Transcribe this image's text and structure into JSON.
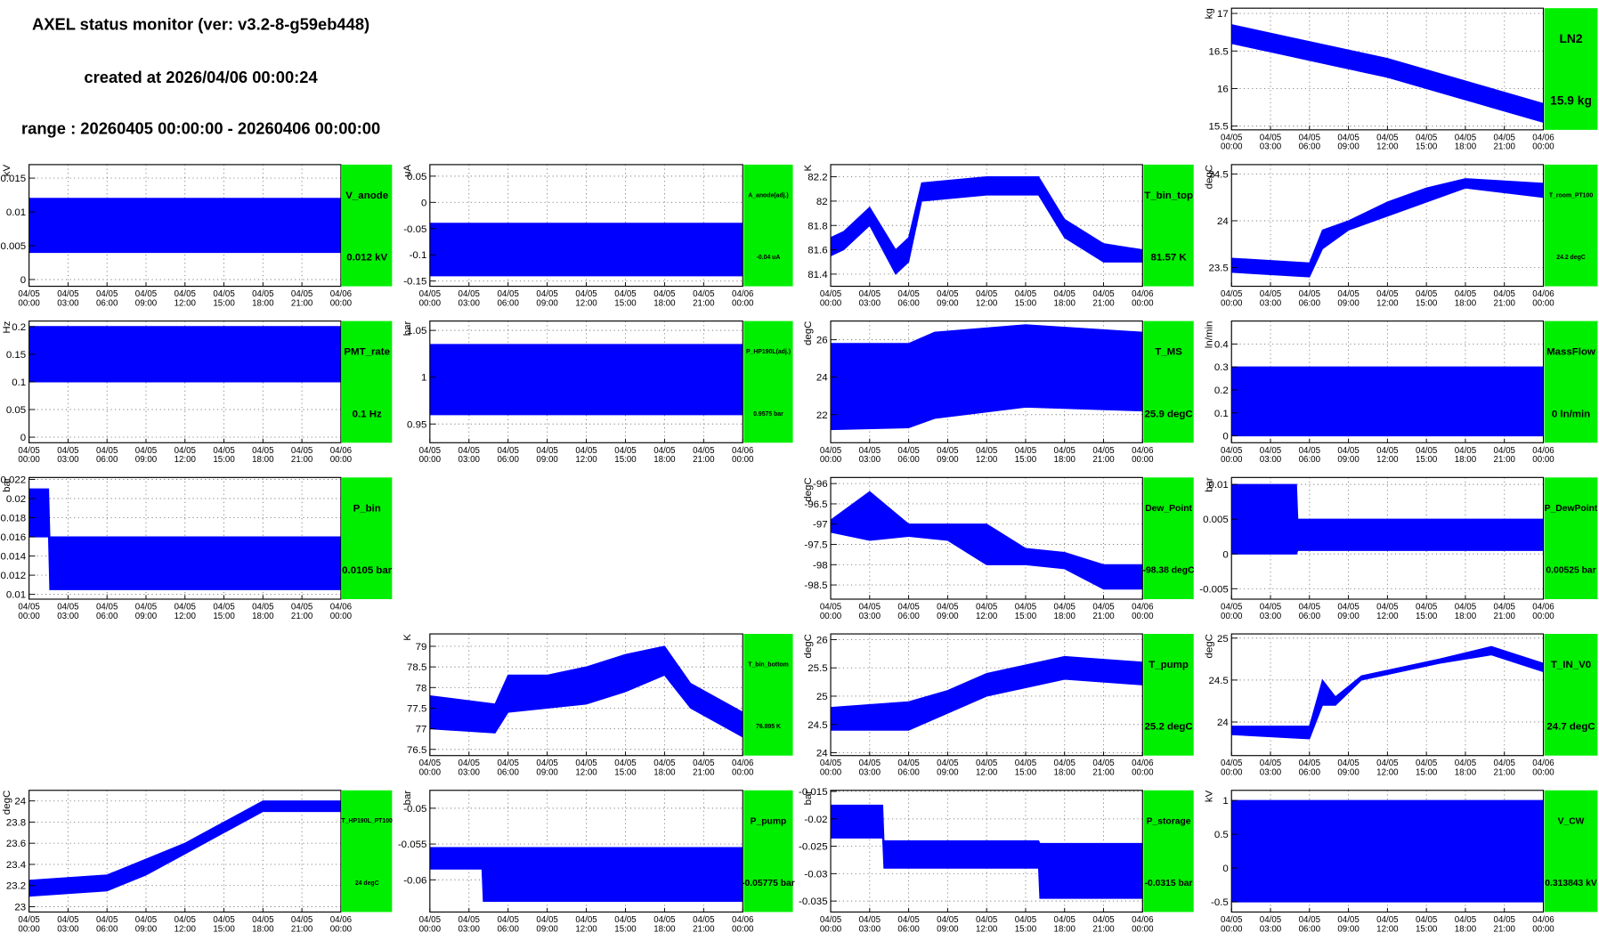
{
  "header": {
    "title": "AXEL status monitor (ver: v3.2-8-g59eb448)",
    "created": "created at 2026/04/06 00:00:24",
    "range": "range : 20260405 00:00:00 - 20260406 00:00:00"
  },
  "time_axis": {
    "xlim": [
      0,
      24
    ],
    "xticks": [
      0,
      3,
      6,
      9,
      12,
      15,
      18,
      21,
      24
    ],
    "dates": [
      "04/05",
      "04/05",
      "04/05",
      "04/05",
      "04/05",
      "04/05",
      "04/05",
      "04/05",
      "04/06"
    ],
    "times": [
      "00:00",
      "03:00",
      "06:00",
      "09:00",
      "12:00",
      "15:00",
      "18:00",
      "21:00",
      "00:00"
    ]
  },
  "chart_data": [
    {
      "type": "band",
      "name": "LN2",
      "reading": "15.9 kg",
      "ylabel": "kg",
      "ylim": [
        15.45,
        17.07
      ],
      "yticks": [
        15.5,
        16,
        16.5,
        17
      ],
      "color": "#0000ff",
      "grid": true,
      "x": [
        0,
        4,
        8,
        12,
        16,
        20,
        24
      ],
      "low": [
        16.6,
        16.45,
        16.3,
        16.15,
        15.95,
        15.75,
        15.55
      ],
      "high": [
        16.85,
        16.7,
        16.55,
        16.4,
        16.2,
        16.0,
        15.8
      ]
    },
    {
      "type": "band",
      "name": "V_anode",
      "reading": "0.012 kV",
      "ylabel": "kV",
      "ylim": [
        -0.001,
        0.017
      ],
      "yticks": [
        0,
        0.005,
        0.01,
        0.015
      ],
      "color": "#0000ff",
      "grid": true,
      "x": [
        0,
        24
      ],
      "low": [
        0.004,
        0.004
      ],
      "high": [
        0.012,
        0.012
      ]
    },
    {
      "type": "band",
      "name": "A_anode(adj.)",
      "reading": "-0.04 uA",
      "ylabel": "uA",
      "ylim": [
        -0.16,
        0.072
      ],
      "yticks": [
        -0.15,
        -0.1,
        -0.05,
        0,
        0.05
      ],
      "color": "#0000ff",
      "grid": true,
      "x": [
        0,
        24
      ],
      "low": [
        -0.14,
        -0.14
      ],
      "high": [
        -0.04,
        -0.04
      ]
    },
    {
      "type": "band",
      "name": "T_bin_top",
      "reading": "81.57 K",
      "ylabel": "K",
      "ylim": [
        81.3,
        82.3
      ],
      "yticks": [
        81.4,
        81.6,
        81.8,
        82,
        82.2
      ],
      "color": "#0000ff",
      "grid": true,
      "x": [
        0,
        1,
        3,
        5,
        6,
        7,
        12,
        16,
        18,
        21,
        24
      ],
      "low": [
        81.55,
        81.6,
        81.8,
        81.4,
        81.5,
        82.0,
        82.05,
        82.05,
        81.7,
        81.5,
        81.5
      ],
      "high": [
        81.7,
        81.75,
        81.95,
        81.6,
        81.7,
        82.15,
        82.2,
        82.2,
        81.85,
        81.65,
        81.6
      ]
    },
    {
      "type": "band",
      "name": "T_room_PT100",
      "reading": "24.2 degC",
      "ylabel": "degC",
      "ylim": [
        23.3,
        24.6
      ],
      "yticks": [
        23.5,
        24,
        24.5
      ],
      "color": "#0000ff",
      "grid": true,
      "x": [
        0,
        6,
        7,
        9,
        12,
        15,
        18,
        24
      ],
      "low": [
        23.45,
        23.4,
        23.7,
        23.9,
        24.05,
        24.2,
        24.35,
        24.25
      ],
      "high": [
        23.6,
        23.55,
        23.9,
        24.0,
        24.2,
        24.35,
        24.45,
        24.4
      ]
    },
    {
      "type": "band",
      "name": "PMT_rate",
      "reading": "0.1 Hz",
      "ylabel": "Hz",
      "ylim": [
        -0.01,
        0.21
      ],
      "yticks": [
        0,
        0.05,
        0.1,
        0.15,
        0.2
      ],
      "color": "#0000ff",
      "grid": true,
      "x": [
        0,
        24
      ],
      "low": [
        0.1,
        0.1
      ],
      "high": [
        0.2,
        0.2
      ]
    },
    {
      "type": "band",
      "name": "P_HP190L(adj.)",
      "reading": "0.9575 bar",
      "ylabel": "bar",
      "ylim": [
        0.93,
        1.06
      ],
      "yticks": [
        0.95,
        1,
        1.05
      ],
      "color": "#0000ff",
      "grid": true,
      "x": [
        0,
        24
      ],
      "low": [
        0.96,
        0.96
      ],
      "high": [
        1.035,
        1.035
      ]
    },
    {
      "type": "band",
      "name": "T_MS",
      "reading": "25.9 degC",
      "ylabel": "degC",
      "ylim": [
        20.5,
        27
      ],
      "yticks": [
        22,
        24,
        26
      ],
      "color": "#0000ff",
      "grid": true,
      "x": [
        0,
        6,
        8,
        15,
        24
      ],
      "low": [
        21.2,
        21.3,
        21.8,
        22.4,
        22.2
      ],
      "high": [
        25.8,
        25.8,
        26.4,
        26.8,
        26.4
      ]
    },
    {
      "type": "band",
      "name": "MassFlow",
      "reading": "0 ln/min",
      "ylabel": "ln/min",
      "ylim": [
        -0.03,
        0.5
      ],
      "yticks": [
        0,
        0.1,
        0.2,
        0.3,
        0.4
      ],
      "color": "#0000ff",
      "grid": true,
      "x": [
        0,
        24
      ],
      "low": [
        0,
        0
      ],
      "high": [
        0.3,
        0.3
      ]
    },
    {
      "type": "band",
      "name": "P_bin",
      "reading": "0.0105 bar",
      "ylabel": "bar",
      "ylim": [
        0.0095,
        0.0222
      ],
      "yticks": [
        0.01,
        0.012,
        0.014,
        0.016,
        0.018,
        0.02,
        0.022
      ],
      "color": "#0000ff",
      "grid": true,
      "x": [
        0,
        1.5,
        1.6,
        24
      ],
      "low": [
        0.016,
        0.016,
        0.0105,
        0.0105
      ],
      "high": [
        0.021,
        0.021,
        0.016,
        0.016
      ]
    },
    {
      "type": "band",
      "name": "Dew_Point",
      "reading": "-98.38 degC",
      "ylabel": "degC",
      "ylim": [
        -98.85,
        -95.85
      ],
      "yticks": [
        -98.5,
        -98,
        -97.5,
        -97,
        -96.5,
        -96
      ],
      "color": "#0000ff",
      "grid": true,
      "x": [
        0,
        3,
        6,
        9,
        12,
        15,
        18,
        21,
        24
      ],
      "low": [
        -97.2,
        -97.4,
        -97.3,
        -97.4,
        -98.0,
        -98.0,
        -98.1,
        -98.6,
        -98.6
      ],
      "high": [
        -96.9,
        -96.2,
        -97.0,
        -97.0,
        -97.0,
        -97.6,
        -97.7,
        -98.0,
        -98.0
      ]
    },
    {
      "type": "band",
      "name": "P_DewPoint",
      "reading": "0.00525 bar",
      "ylabel": "bar",
      "ylim": [
        -0.0065,
        0.011
      ],
      "yticks": [
        -0.005,
        0,
        0.005,
        0.01
      ],
      "color": "#0000ff",
      "grid": true,
      "x": [
        0,
        5,
        5.1,
        24
      ],
      "low": [
        0,
        0,
        0.0005,
        0.0005
      ],
      "high": [
        0.01,
        0.01,
        0.005,
        0.005
      ]
    },
    {
      "type": "band",
      "name": "T_bin_bottom",
      "reading": "76.895 K",
      "ylabel": "K",
      "ylim": [
        76.35,
        79.3
      ],
      "yticks": [
        76.5,
        77,
        77.5,
        78,
        78.5,
        79
      ],
      "color": "#0000ff",
      "grid": true,
      "x": [
        0,
        5,
        6,
        9,
        12,
        15,
        18,
        20,
        24
      ],
      "low": [
        77.0,
        76.9,
        77.4,
        77.5,
        77.6,
        77.9,
        78.3,
        77.5,
        76.8
      ],
      "high": [
        77.8,
        77.6,
        78.3,
        78.3,
        78.5,
        78.8,
        79.0,
        78.1,
        77.4
      ]
    },
    {
      "type": "band",
      "name": "T_pump",
      "reading": "25.2 degC",
      "ylabel": "degC",
      "ylim": [
        23.95,
        26.1
      ],
      "yticks": [
        24,
        24.5,
        25,
        25.5,
        26
      ],
      "color": "#0000ff",
      "grid": true,
      "x": [
        0,
        6,
        9,
        12,
        18,
        24
      ],
      "low": [
        24.4,
        24.4,
        24.7,
        25.0,
        25.3,
        25.2
      ],
      "high": [
        24.8,
        24.9,
        25.1,
        25.4,
        25.7,
        25.6
      ]
    },
    {
      "type": "band",
      "name": "T_IN_V0",
      "reading": "24.7 degC",
      "ylabel": "degC",
      "ylim": [
        23.6,
        25.05
      ],
      "yticks": [
        24,
        24.5,
        25
      ],
      "color": "#0000ff",
      "grid": true,
      "x": [
        0,
        6,
        7,
        8,
        10,
        16,
        20,
        24
      ],
      "low": [
        23.85,
        23.8,
        24.2,
        24.2,
        24.5,
        24.7,
        24.8,
        24.6
      ],
      "high": [
        23.95,
        23.95,
        24.5,
        24.3,
        24.55,
        24.75,
        24.9,
        24.7
      ]
    },
    {
      "type": "band",
      "name": "T_HP190L_PT100",
      "reading": "24 degC",
      "ylabel": "degC",
      "ylim": [
        22.95,
        24.1
      ],
      "yticks": [
        23,
        23.2,
        23.4,
        23.6,
        23.8,
        24
      ],
      "color": "#0000ff",
      "grid": true,
      "x": [
        0,
        6,
        9,
        12,
        15,
        18,
        24
      ],
      "low": [
        23.1,
        23.15,
        23.3,
        23.5,
        23.7,
        23.9,
        23.9
      ],
      "high": [
        23.25,
        23.3,
        23.45,
        23.6,
        23.8,
        24.0,
        24.0
      ]
    },
    {
      "type": "band",
      "name": "P_pump",
      "reading": "-0.05775 bar",
      "ylabel": "bar",
      "ylim": [
        -0.0645,
        -0.0475
      ],
      "yticks": [
        -0.06,
        -0.055,
        -0.05
      ],
      "color": "#0000ff",
      "grid": true,
      "x": [
        0,
        4,
        4.1,
        24
      ],
      "low": [
        -0.0585,
        -0.0585,
        -0.063,
        -0.063
      ],
      "high": [
        -0.0555,
        -0.0555,
        -0.0555,
        -0.0555
      ]
    },
    {
      "type": "band",
      "name": "P_storage",
      "reading": "-0.0315 bar",
      "ylabel": "bar",
      "ylim": [
        -0.037,
        -0.0148
      ],
      "yticks": [
        -0.035,
        -0.03,
        -0.025,
        -0.02,
        -0.015
      ],
      "color": "#0000ff",
      "grid": true,
      "x": [
        0,
        4,
        4.1,
        16,
        16.1,
        24
      ],
      "low": [
        -0.0235,
        -0.0235,
        -0.029,
        -0.029,
        -0.0345,
        -0.0345
      ],
      "high": [
        -0.0175,
        -0.0175,
        -0.024,
        -0.024,
        -0.0245,
        -0.0245
      ]
    },
    {
      "type": "band",
      "name": "V_CW",
      "reading": "0.313843 kV",
      "ylabel": "kV",
      "ylim": [
        -0.65,
        1.15
      ],
      "yticks": [
        -0.5,
        0,
        0.5,
        1
      ],
      "color": "#0000ff",
      "grid": true,
      "x": [
        0,
        24
      ],
      "low": [
        -0.5,
        -0.5
      ],
      "high": [
        1.0,
        1.0
      ]
    }
  ]
}
